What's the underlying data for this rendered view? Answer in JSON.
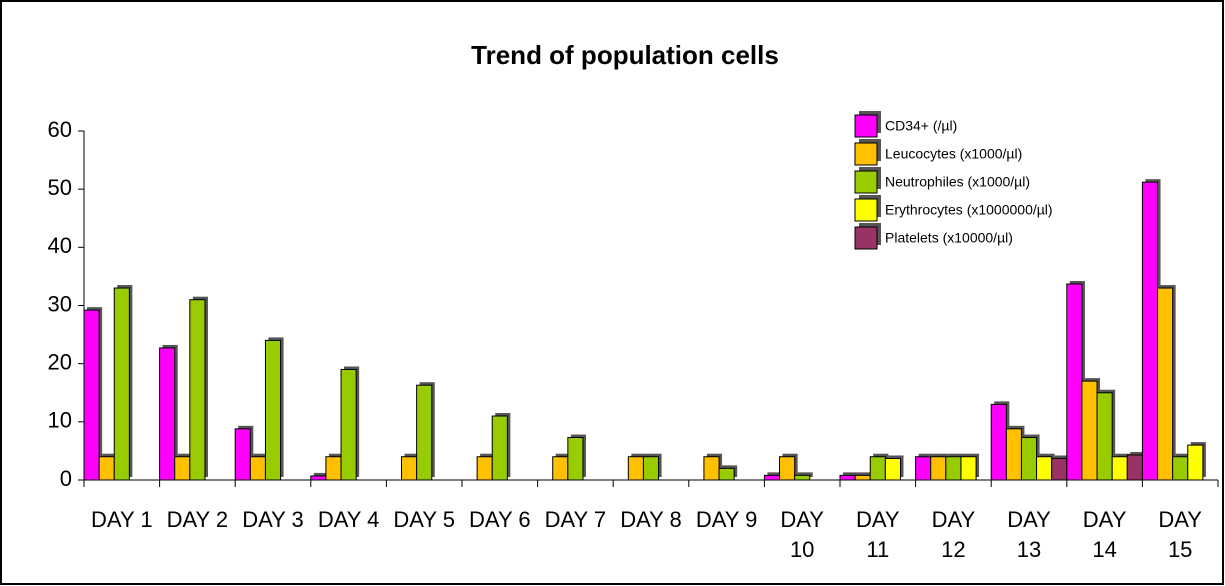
{
  "chart_data": {
    "type": "bar",
    "title": "Trend of population cells",
    "categories": [
      "DAY 1",
      "DAY 2",
      "DAY 3",
      "DAY 4",
      "DAY 5",
      "DAY 6",
      "DAY 7",
      "DAY 8",
      "DAY 9",
      "DAY 10",
      "DAY 11",
      "DAY 12",
      "DAY 13",
      "DAY 14",
      "DAY 15"
    ],
    "series": [
      {
        "name": "CD34+ (/µl)",
        "color": "#ff00ff",
        "values": [
          29.2,
          22.7,
          8.8,
          0.7,
          0,
          0,
          0,
          0,
          0,
          0.8,
          0.8,
          4,
          13,
          33.7,
          51.2
        ]
      },
      {
        "name": "Leucocytes (x1000/µl)",
        "color": "#ffc000",
        "values": [
          4,
          4,
          4,
          4,
          4,
          4,
          4,
          4,
          4,
          4,
          0.8,
          4,
          8.8,
          17,
          33
        ]
      },
      {
        "name": "Neutrophiles (x1000/µl)",
        "color": "#99cc00",
        "values": [
          33,
          31,
          24,
          19,
          16.3,
          11,
          7.3,
          4,
          2,
          0.8,
          4,
          4,
          7.3,
          15,
          4
        ]
      },
      {
        "name": "Erythrocytes (x1000000/µl)",
        "color": "#ffff00",
        "values": [
          0,
          0,
          0,
          0,
          0,
          0,
          0,
          0,
          0,
          0,
          3.7,
          4,
          4,
          4,
          6
        ]
      },
      {
        "name": "Platelets (x10000/µl)",
        "color": "#993366",
        "values": [
          0,
          0,
          0,
          0,
          0,
          0,
          0,
          0,
          0,
          0,
          0,
          0,
          3.7,
          4.3,
          0
        ]
      }
    ],
    "ylim": [
      0,
      60
    ],
    "yticks": [
      0,
      10,
      20,
      30,
      40,
      50,
      60
    ],
    "legend": "upper right"
  }
}
